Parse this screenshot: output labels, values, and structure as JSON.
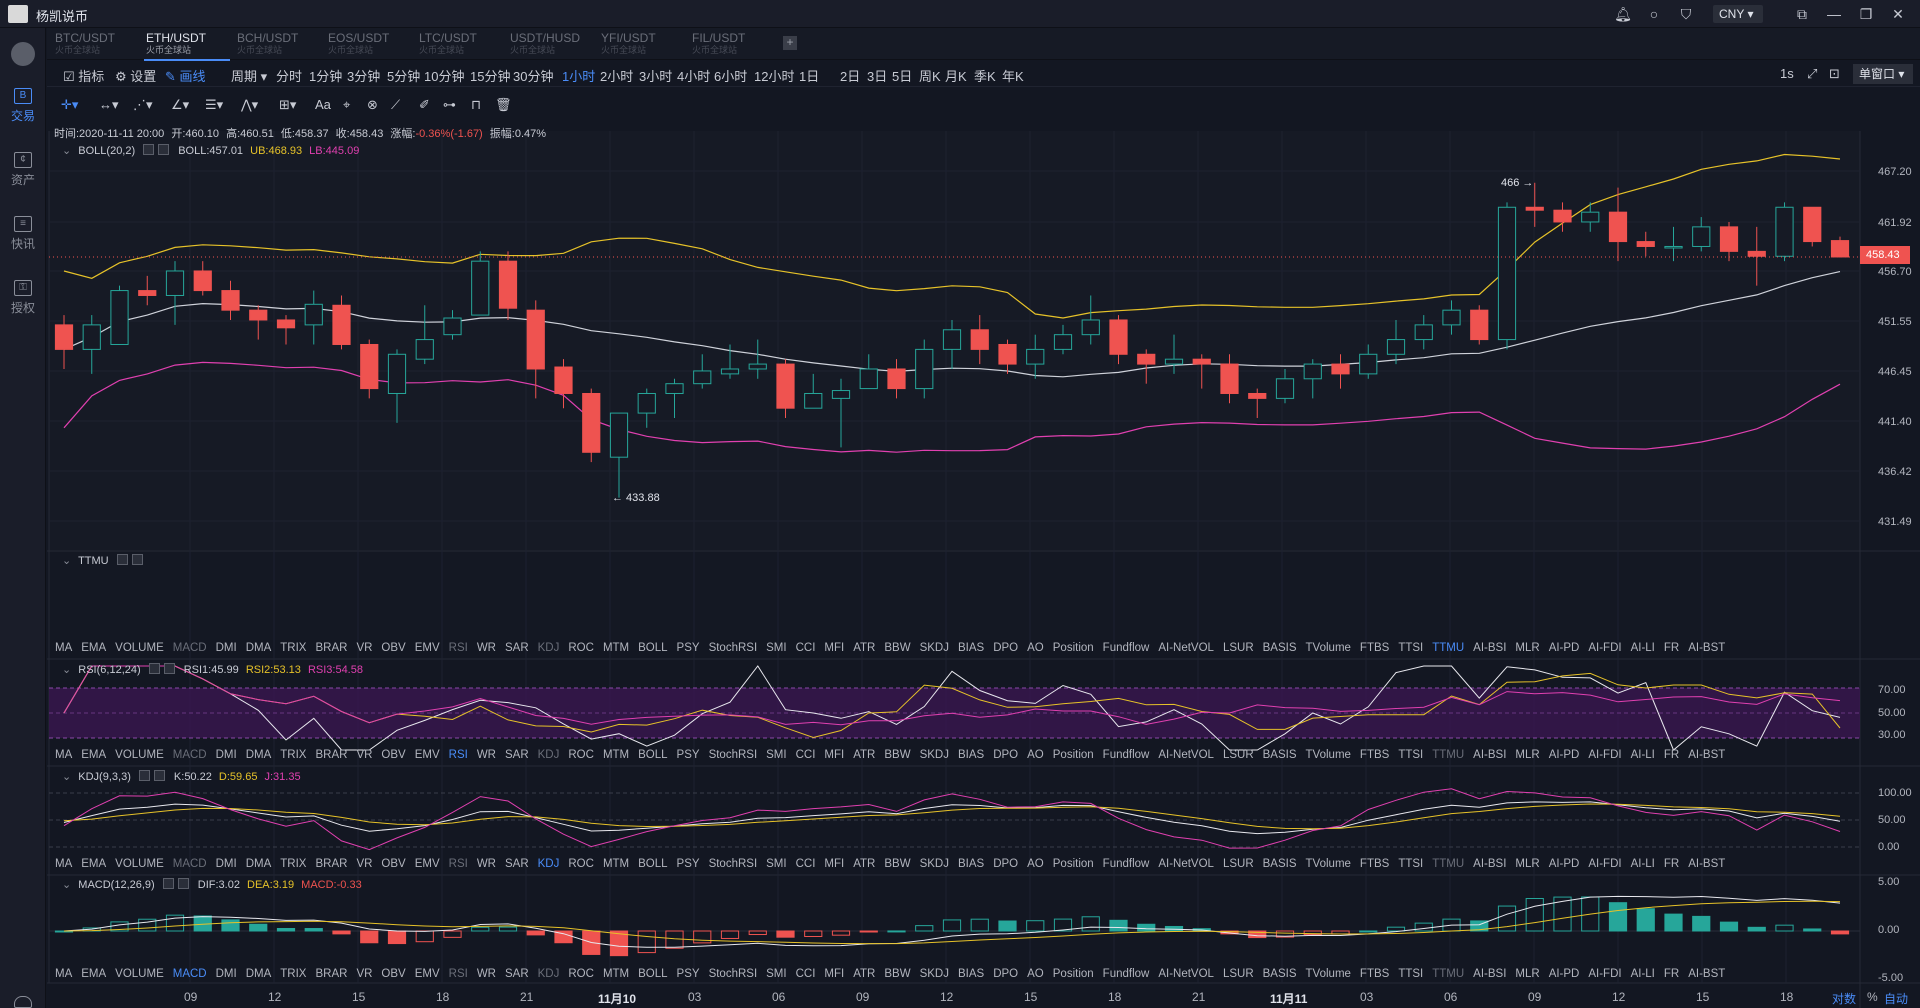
{
  "app": {
    "title": "杨凯说币",
    "currency": "CNY",
    "window_mode": "单窗口"
  },
  "nav": [
    {
      "label": "交易",
      "icon": "trade-icon",
      "glyph": "B",
      "active": true
    },
    {
      "label": "资产",
      "icon": "wallet-icon",
      "glyph": "¢"
    },
    {
      "label": "快讯",
      "icon": "news-icon",
      "glyph": "≡"
    },
    {
      "label": "授权",
      "icon": "key-icon",
      "glyph": "⚿"
    }
  ],
  "pairs": [
    {
      "name": "BTC/USDT",
      "sub": "火币全球站"
    },
    {
      "name": "ETH/USDT",
      "sub": "火币全球站",
      "active": true
    },
    {
      "name": "BCH/USDT",
      "sub": "火币全球站"
    },
    {
      "name": "EOS/USDT",
      "sub": "火币全球站"
    },
    {
      "name": "LTC/USDT",
      "sub": "火币全球站"
    },
    {
      "name": "USDT/HUSD",
      "sub": "火币全球站"
    },
    {
      "name": "YFI/USDT",
      "sub": "火币全球站"
    },
    {
      "name": "FIL/USDT",
      "sub": "火币全球站"
    }
  ],
  "toolbar": {
    "indicator": "指标",
    "settings": "设置",
    "draw": "画线",
    "period": "周期",
    "periods": [
      "分时",
      "1分钟",
      "3分钟",
      "5分钟",
      "10分钟",
      "15分钟",
      "30分钟",
      "1小时",
      "2小时",
      "3小时",
      "4小时",
      "6小时",
      "12小时",
      "1日",
      "2日",
      "3日",
      "5日",
      "周K",
      "月K",
      "季K",
      "年K"
    ],
    "active_period": "1小时",
    "interval": "1s",
    "text_tool": "Aa"
  },
  "ohlc": {
    "time": "时间:2020-11-11 20:00",
    "open": "开:460.10",
    "high": "高:460.51",
    "low": "低:458.37",
    "close": "收:458.43",
    "change_label": "涨幅:",
    "change": "-0.36%(-1.67)",
    "amp": "振幅:0.47%"
  },
  "boll": {
    "name": "BOLL(20,2)",
    "mid": "BOLL:457.01",
    "ub": "UB:468.93",
    "lb": "LB:445.09"
  },
  "ttmu": {
    "name": "TTMU"
  },
  "rsi": {
    "name": "RSI(6,12,24)",
    "r1": "RSI1:45.99",
    "r2": "RSI2:53.13",
    "r3": "RSI3:54.58",
    "ticks": [
      "70.00",
      "50.00",
      "30.00"
    ]
  },
  "kdj": {
    "name": "KDJ(9,3,3)",
    "k": "K:50.22",
    "d": "D:59.65",
    "j": "J:31.35",
    "ticks": [
      "100.00",
      "50.00",
      "0.00"
    ]
  },
  "macd": {
    "name": "MACD(12,26,9)",
    "dif": "DIF:3.02",
    "dea": "DEA:3.19",
    "macd": "MACD:-0.33",
    "ticks": [
      "5.00",
      "0.00",
      "-5.00"
    ]
  },
  "indicators": [
    "MA",
    "EMA",
    "VOLUME",
    "MACD",
    "DMI",
    "DMA",
    "TRIX",
    "BRAR",
    "VR",
    "OBV",
    "EMV",
    "RSI",
    "WR",
    "SAR",
    "KDJ",
    "ROC",
    "MTM",
    "BOLL",
    "PSY",
    "StochRSI",
    "SMI",
    "CCI",
    "MFI",
    "ATR",
    "BBW",
    "SKDJ",
    "BIAS",
    "DPO",
    "AO",
    "Position",
    "Fundflow",
    "AI-NetVOL",
    "LSUR",
    "BASIS",
    "TVolume",
    "FTBS",
    "TTSI",
    "TTMU",
    "AI-BSI",
    "MLR",
    "AI-PD",
    "AI-FDI",
    "AI-LI",
    "FR",
    "AI-BST"
  ],
  "price_axis": [
    "467.20",
    "461.92",
    "456.70",
    "451.55",
    "446.45",
    "441.40",
    "436.42",
    "431.49"
  ],
  "last_price": "458.43",
  "high_mark": "466 →",
  "low_mark": "← 433.88",
  "time_axis": [
    "09",
    "12",
    "15",
    "18",
    "21",
    "11月10",
    "03",
    "06",
    "09",
    "12",
    "15",
    "18",
    "21",
    "11月11",
    "03",
    "06",
    "09",
    "12",
    "15",
    "18"
  ],
  "axis_controls": {
    "log": "对数",
    "pct": "%",
    "auto": "自动"
  },
  "colors": {
    "up": "#26a69a",
    "down": "#ef5350",
    "boll_mid": "#cfd2da",
    "boll_ub": "#e6c229",
    "boll_lb": "#e040b0",
    "accent": "#4a8cf7"
  },
  "chart_data": {
    "type": "candlestick",
    "interval": "1小时",
    "candles": [
      [
        451.5,
        449.0,
        452.5,
        447.0
      ],
      [
        449.0,
        451.5,
        452.5,
        446.5
      ],
      [
        449.5,
        455.0,
        455.5,
        449.5
      ],
      [
        455.0,
        454.5,
        456.5,
        453.5
      ],
      [
        454.5,
        457.0,
        458.0,
        451.5
      ],
      [
        457.0,
        455.0,
        458.0,
        454.5
      ],
      [
        455.0,
        453.0,
        456.0,
        452.0
      ],
      [
        453.0,
        452.0,
        453.5,
        450.0
      ],
      [
        452.0,
        451.2,
        452.5,
        449.5
      ],
      [
        451.5,
        453.6,
        455.0,
        449.5
      ],
      [
        453.5,
        449.5,
        454.5,
        449.0
      ],
      [
        449.5,
        445.0,
        450.0,
        444.0
      ],
      [
        444.5,
        448.5,
        449.0,
        441.5
      ],
      [
        448.0,
        450.0,
        453.5,
        447.5
      ],
      [
        450.5,
        452.2,
        453.0,
        450.0
      ],
      [
        452.5,
        458.0,
        459.0,
        452.5
      ],
      [
        458.0,
        453.2,
        459.0,
        452.0
      ],
      [
        453.0,
        447.0,
        454.0,
        444.0
      ],
      [
        447.2,
        444.5,
        448.0,
        443.0
      ],
      [
        444.5,
        438.5,
        445.0,
        437.5
      ],
      [
        438.0,
        442.5,
        442.5,
        433.88
      ],
      [
        442.5,
        444.5,
        445.0,
        441.0
      ],
      [
        444.5,
        445.5,
        446.0,
        442.0
      ],
      [
        445.5,
        446.8,
        448.5,
        445.0
      ],
      [
        446.5,
        447.0,
        449.5,
        446.0
      ],
      [
        447.0,
        447.5,
        450.0,
        446.0
      ],
      [
        447.5,
        443.0,
        448.0,
        442.0
      ],
      [
        443.0,
        444.5,
        446.5,
        443.0
      ],
      [
        444.0,
        444.8,
        446.0,
        439.0
      ],
      [
        445.0,
        447.0,
        448.5,
        445.0
      ],
      [
        447.0,
        445.0,
        448.0,
        444.0
      ],
      [
        445.0,
        449.0,
        450.0,
        444.0
      ],
      [
        449.0,
        451.0,
        452.0,
        447.0
      ],
      [
        451.0,
        449.0,
        452.5,
        447.5
      ],
      [
        449.5,
        447.5,
        450.0,
        446.5
      ],
      [
        447.5,
        449.0,
        450.5,
        446.0
      ],
      [
        449.0,
        450.5,
        451.5,
        448.5
      ],
      [
        450.5,
        452.0,
        454.5,
        449.5
      ],
      [
        452.0,
        448.5,
        452.5,
        447.5
      ],
      [
        448.5,
        447.5,
        449.0,
        445.5
      ],
      [
        447.5,
        448.0,
        450.5,
        446.5
      ],
      [
        448.0,
        447.5,
        448.5,
        445.0
      ],
      [
        447.5,
        444.5,
        448.5,
        443.5
      ],
      [
        444.5,
        444.0,
        445.0,
        442.0
      ],
      [
        444.0,
        446.0,
        447.0,
        443.5
      ],
      [
        446.0,
        447.5,
        448.0,
        444.0
      ],
      [
        447.5,
        446.5,
        448.5,
        445.0
      ],
      [
        446.5,
        448.5,
        449.5,
        446.0
      ],
      [
        448.5,
        450.0,
        452.0,
        447.5
      ],
      [
        450.0,
        451.5,
        452.5,
        449.0
      ],
      [
        451.5,
        453.0,
        454.0,
        450.5
      ],
      [
        453.0,
        450.0,
        453.5,
        449.5
      ],
      [
        450.0,
        463.5,
        464.0,
        449.0
      ],
      [
        463.5,
        463.2,
        466.0,
        461.5
      ],
      [
        463.2,
        462.0,
        464.0,
        461.0
      ],
      [
        462.0,
        463.0,
        464.0,
        461.0
      ],
      [
        463.0,
        460.0,
        465.5,
        458.0
      ],
      [
        460.0,
        459.5,
        461.0,
        458.5
      ],
      [
        459.5,
        459.5,
        461.5,
        458.0
      ],
      [
        459.5,
        461.5,
        462.5,
        459.0
      ],
      [
        461.5,
        459.0,
        462.0,
        458.0
      ],
      [
        459.0,
        458.5,
        461.5,
        455.5
      ],
      [
        458.5,
        463.5,
        464.0,
        458.0
      ],
      [
        463.5,
        460.0,
        463.5,
        459.5
      ],
      [
        460.1,
        458.43,
        460.51,
        458.37
      ]
    ],
    "boll": {
      "mid": "BOLL:457.01",
      "ub": "UB:468.93",
      "lb": "LB:445.09"
    },
    "high_marker": 466,
    "low_marker": 433.88
  }
}
